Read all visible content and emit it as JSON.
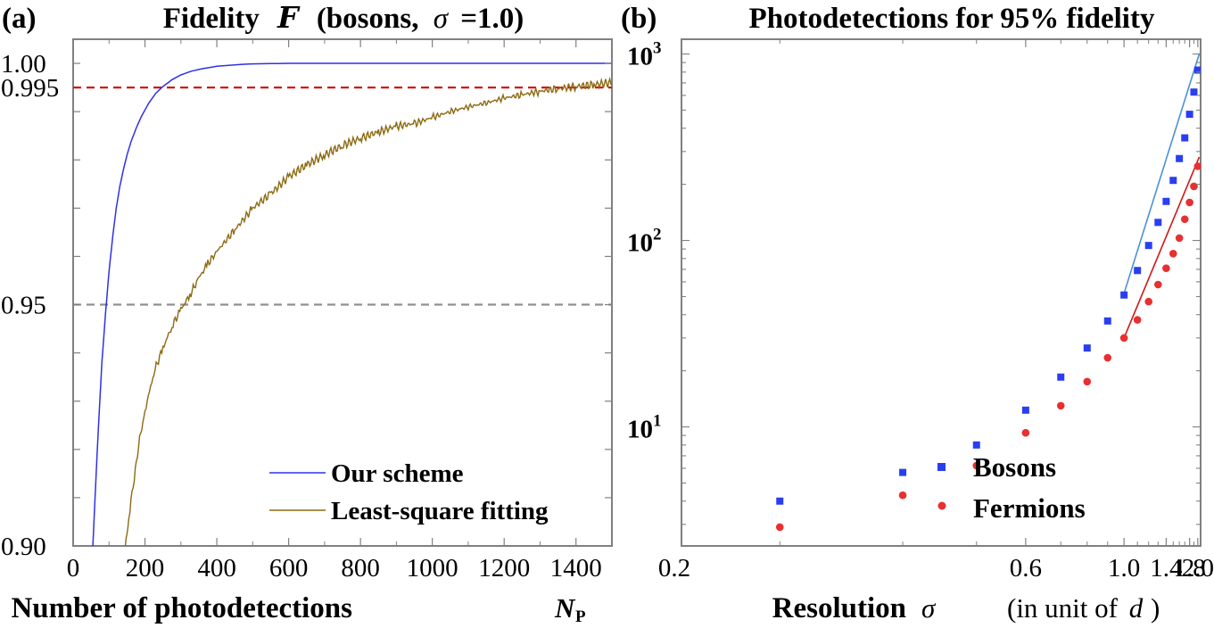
{
  "chart_data": [
    {
      "panel_label": "(a)",
      "type": "line",
      "title": "Fidelity  F  (bosons, σ =1.0)",
      "title_parts": {
        "prefix": "Fidelity",
        "symbol": "F",
        "suffix": "(bosons,",
        "sigma": "σ",
        "sigma_value": "=1.0)"
      },
      "xlabel": "Number of photodetections",
      "xlabel_symbol": "N",
      "xlabel_subscript": "P",
      "xlim": [
        0,
        1500
      ],
      "ylim": [
        0.9,
        1.005
      ],
      "xticks": [
        0,
        200,
        400,
        600,
        800,
        1000,
        1200,
        1400
      ],
      "yticks": [
        {
          "value": 0.9,
          "label": "0.90"
        },
        {
          "value": 0.95,
          "label": "0.95"
        },
        {
          "value": 0.995,
          "label": "0.995"
        },
        {
          "value": 1.0,
          "label": "1.00"
        }
      ],
      "reference_lines": [
        {
          "y": 0.995,
          "color": "#d01818",
          "style": "dashed"
        },
        {
          "y": 0.95,
          "color": "#909090",
          "style": "dashed"
        }
      ],
      "legend_position": "bottom-right",
      "series": [
        {
          "name": "Our scheme",
          "color": "#3030e8",
          "x": [
            55,
            60,
            70,
            80,
            90,
            100,
            110,
            120,
            130,
            140,
            150,
            160,
            175,
            190,
            210,
            230,
            250,
            275,
            300,
            330,
            360,
            400,
            450,
            500,
            550,
            600,
            700,
            800,
            1000,
            1200,
            1500
          ],
          "y": [
            0.9,
            0.9085,
            0.924,
            0.938,
            0.948,
            0.957,
            0.964,
            0.97,
            0.9745,
            0.978,
            0.981,
            0.9835,
            0.9865,
            0.989,
            0.9917,
            0.9938,
            0.9952,
            0.9966,
            0.9976,
            0.9984,
            0.9989,
            0.9994,
            0.9997,
            0.9999,
            0.99995,
            1.0,
            1.0,
            1.0,
            1.0,
            1.0,
            1.0
          ]
        },
        {
          "name": "Least-square fitting",
          "color": "#8c6a12",
          "x": [
            145,
            155,
            170,
            185,
            200,
            225,
            250,
            275,
            300,
            325,
            350,
            375,
            400,
            450,
            500,
            550,
            600,
            650,
            700,
            750,
            800,
            850,
            900,
            950,
            1000,
            1050,
            1100,
            1150,
            1200,
            1250,
            1300,
            1350,
            1400,
            1450,
            1500
          ],
          "y": [
            0.9,
            0.906,
            0.914,
            0.922,
            0.928,
            0.936,
            0.941,
            0.9455,
            0.949,
            0.952,
            0.9555,
            0.9585,
            0.961,
            0.9655,
            0.97,
            0.973,
            0.9765,
            0.979,
            0.981,
            0.983,
            0.9845,
            0.9858,
            0.987,
            0.9875,
            0.9888,
            0.99,
            0.991,
            0.9918,
            0.9928,
            0.9935,
            0.9942,
            0.9948,
            0.9952,
            0.9956,
            0.996
          ]
        }
      ]
    },
    {
      "panel_label": "(b)",
      "type": "scatter",
      "title": "Photodetections for 95% fidelity",
      "xlabel": "Resolution",
      "xlabel_symbol": "σ",
      "xlabel_unit": "(in unit of d)",
      "xlabel_unit_parts": {
        "prefix": "(in unit of",
        "symbol": "d",
        "suffix": ")"
      },
      "xscale": "reciprocal",
      "yscale": "log",
      "xlim": [
        0.25,
        2.08
      ],
      "ylim": [
        2.3,
        1200
      ],
      "xticks": [
        {
          "value": 0.2,
          "label": "0.2"
        },
        {
          "value": 0.6,
          "label": "0.6"
        },
        {
          "value": 1.0,
          "label": "1.0"
        },
        {
          "value": 1.4,
          "label": "1.4"
        },
        {
          "value": 1.8,
          "label": "1.8"
        },
        {
          "value": 2.0,
          "label": "2.0"
        }
      ],
      "yticks": [
        {
          "value": 10,
          "base": "10",
          "exp": "1"
        },
        {
          "value": 100,
          "base": "10",
          "exp": "2"
        },
        {
          "value": 1000,
          "base": "10",
          "exp": "3"
        }
      ],
      "legend_position": "bottom-right",
      "series": [
        {
          "name": "Bosons",
          "marker": "square",
          "color": "#2a3ef0",
          "x": [
            0.3,
            0.4,
            0.5,
            0.6,
            0.7,
            0.8,
            0.9,
            1.0,
            1.1,
            1.2,
            1.3,
            1.4,
            1.5,
            1.6,
            1.7,
            1.8,
            1.9,
            2.0
          ],
          "y": [
            4,
            5.7,
            8,
            12.3,
            18.5,
            26.5,
            37,
            51,
            69,
            94,
            125,
            162,
            210,
            275,
            355,
            475,
            625,
            820
          ],
          "fit_x": [
            1.0,
            2.04
          ],
          "fit_y": [
            52,
            1000
          ],
          "fit_color": "#4a90d9"
        },
        {
          "name": "Fermions",
          "marker": "circle",
          "color": "#e83030",
          "x": [
            0.3,
            0.4,
            0.5,
            0.6,
            0.7,
            0.8,
            0.9,
            1.0,
            1.1,
            1.2,
            1.3,
            1.4,
            1.5,
            1.6,
            1.7,
            1.8,
            1.9,
            2.0
          ],
          "y": [
            2.9,
            4.3,
            6.2,
            9.3,
            13,
            17.5,
            23.5,
            30,
            37.5,
            47,
            58,
            71,
            85,
            103,
            130,
            160,
            195,
            250
          ],
          "fit_x": [
            1.0,
            2.04
          ],
          "fit_y": [
            30,
            280
          ],
          "fit_color": "#d01818"
        }
      ]
    }
  ]
}
